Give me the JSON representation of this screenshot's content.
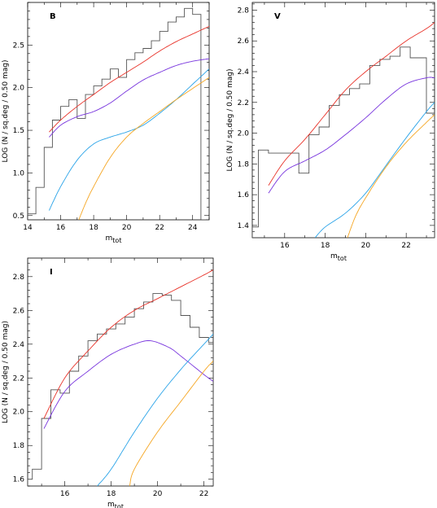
{
  "chart_data": [
    {
      "type": "line",
      "panel_label": "B",
      "xlabel": "m",
      "xlabel_sub": "tot",
      "ylabel": "LOG (N / sq.deg / 0.50 mag)",
      "xlim": [
        14,
        25
      ],
      "ylim": [
        0.45,
        3.0
      ],
      "xticks": [
        14,
        16,
        18,
        20,
        22,
        24
      ],
      "yticks": [
        0.5,
        1.0,
        1.5,
        2.0,
        2.5
      ],
      "ytick_labels": [
        "0.5",
        "1.0",
        "1.5",
        "2.0",
        "2.5"
      ],
      "grid": false,
      "series": [
        {
          "kind": "histogram",
          "color": "#555555",
          "edges": [
            14.0,
            14.5,
            15.0,
            15.5,
            16.0,
            16.5,
            17.0,
            17.5,
            18.0,
            18.5,
            19.0,
            19.5,
            20.0,
            20.5,
            21.0,
            21.5,
            22.0,
            22.5,
            23.0,
            23.5,
            24.0,
            24.5,
            24.8
          ],
          "values": [
            0.52,
            0.83,
            1.3,
            1.62,
            1.78,
            1.86,
            1.64,
            1.92,
            2.02,
            2.1,
            2.22,
            2.12,
            2.33,
            2.41,
            2.46,
            2.55,
            2.66,
            2.77,
            2.83,
            2.93,
            2.86,
            0.45
          ]
        },
        {
          "color": "#e8332a",
          "x": [
            15.3,
            16,
            17,
            18,
            19,
            20,
            21,
            22,
            23,
            24,
            25
          ],
          "y": [
            1.48,
            1.62,
            1.78,
            1.92,
            2.06,
            2.18,
            2.3,
            2.43,
            2.54,
            2.63,
            2.72
          ]
        },
        {
          "color": "#7733dd",
          "x": [
            15.3,
            16,
            17,
            18,
            19,
            20,
            21,
            22,
            23,
            24,
            25
          ],
          "y": [
            1.42,
            1.56,
            1.66,
            1.72,
            1.82,
            1.96,
            2.09,
            2.18,
            2.26,
            2.31,
            2.34
          ]
        },
        {
          "color": "#29a3e8",
          "x": [
            15.3,
            16,
            17,
            18,
            19,
            20,
            21,
            22,
            23,
            24,
            25
          ],
          "y": [
            0.56,
            0.84,
            1.15,
            1.34,
            1.42,
            1.48,
            1.56,
            1.7,
            1.86,
            2.04,
            2.22
          ]
        },
        {
          "color": "#f5a623",
          "x": [
            17.1,
            17.5,
            18,
            19,
            20,
            21,
            22,
            23,
            24,
            25
          ],
          "y": [
            0.45,
            0.64,
            0.84,
            1.18,
            1.42,
            1.58,
            1.72,
            1.86,
            1.99,
            2.12
          ]
        }
      ]
    },
    {
      "type": "line",
      "panel_label": "V",
      "xlabel": "m",
      "xlabel_sub": "tot",
      "ylabel": "LOG (N / sq.deg / 0.50 mag)",
      "xlim": [
        14.4,
        23.4
      ],
      "ylim": [
        1.32,
        2.85
      ],
      "xticks": [
        16,
        18,
        20,
        22
      ],
      "yticks": [
        1.4,
        1.6,
        1.8,
        2.0,
        2.2,
        2.4,
        2.6,
        2.8
      ],
      "ytick_labels": [
        "1.4",
        "1.6",
        "1.8",
        "2.0",
        "2.2",
        "2.4",
        "2.6",
        "2.8"
      ],
      "grid": false,
      "series": [
        {
          "kind": "histogram",
          "color": "#555555",
          "edges": [
            14.4,
            14.7,
            15.2,
            15.7,
            16.2,
            16.7,
            17.2,
            17.7,
            18.2,
            18.7,
            19.2,
            19.7,
            20.2,
            20.7,
            21.2,
            21.7,
            22.2,
            22.7,
            23.0,
            23.4
          ],
          "values": [
            1.39,
            1.89,
            1.87,
            1.87,
            1.87,
            1.74,
            1.99,
            2.04,
            2.18,
            2.25,
            2.29,
            2.32,
            2.44,
            2.48,
            2.5,
            2.56,
            2.49,
            2.49,
            2.13
          ]
        },
        {
          "color": "#e8332a",
          "x": [
            15.2,
            16,
            17,
            18,
            19,
            20,
            21,
            22,
            23,
            23.4
          ],
          "y": [
            1.66,
            1.82,
            1.96,
            2.12,
            2.28,
            2.4,
            2.5,
            2.6,
            2.68,
            2.72
          ]
        },
        {
          "color": "#7733dd",
          "x": [
            15.2,
            16,
            17,
            18,
            19,
            20,
            21,
            22,
            23,
            23.4
          ],
          "y": [
            1.61,
            1.75,
            1.82,
            1.89,
            1.99,
            2.1,
            2.22,
            2.32,
            2.36,
            2.36
          ]
        },
        {
          "color": "#29a3e8",
          "x": [
            17.5,
            18,
            19,
            20,
            21,
            22,
            23,
            23.4
          ],
          "y": [
            1.32,
            1.39,
            1.48,
            1.61,
            1.79,
            1.97,
            2.14,
            2.2
          ]
        },
        {
          "color": "#f5a623",
          "x": [
            19.1,
            19.5,
            20,
            21,
            22,
            23,
            23.4
          ],
          "y": [
            1.32,
            1.46,
            1.58,
            1.78,
            1.94,
            2.07,
            2.12
          ]
        }
      ]
    },
    {
      "type": "line",
      "panel_label": "I",
      "xlabel": "m",
      "xlabel_sub": "tot",
      "ylabel": "LOG (N / sq.deg / 0.50 mag)",
      "xlim": [
        14.4,
        22.4
      ],
      "ylim": [
        1.56,
        2.91
      ],
      "xticks": [
        16,
        18,
        20,
        22
      ],
      "yticks": [
        1.6,
        1.8,
        2.0,
        2.2,
        2.4,
        2.6,
        2.8
      ],
      "ytick_labels": [
        "1.6",
        "1.8",
        "2.0",
        "2.2",
        "2.4",
        "2.6",
        "2.8"
      ],
      "grid": false,
      "series": [
        {
          "kind": "histogram",
          "color": "#555555",
          "edges": [
            14.4,
            14.6,
            15.0,
            15.4,
            15.8,
            16.2,
            16.6,
            17.0,
            17.4,
            17.8,
            18.2,
            18.6,
            19.0,
            19.4,
            19.8,
            20.2,
            20.6,
            21.0,
            21.4,
            21.8,
            22.2,
            22.4
          ],
          "values": [
            1.6,
            1.66,
            1.96,
            2.13,
            2.11,
            2.24,
            2.33,
            2.42,
            2.46,
            2.49,
            2.52,
            2.56,
            2.61,
            2.65,
            2.7,
            2.69,
            2.66,
            2.57,
            2.5,
            2.44,
            2.41
          ]
        },
        {
          "color": "#e8332a",
          "x": [
            15.1,
            16,
            17,
            18,
            19,
            20,
            21,
            22,
            22.4
          ],
          "y": [
            1.96,
            2.2,
            2.36,
            2.5,
            2.6,
            2.67,
            2.74,
            2.81,
            2.84
          ]
        },
        {
          "color": "#7733dd",
          "x": [
            15.1,
            16,
            17,
            18,
            19,
            19.7,
            20.5,
            21,
            22,
            22.4
          ],
          "y": [
            1.9,
            2.12,
            2.24,
            2.34,
            2.4,
            2.42,
            2.38,
            2.33,
            2.22,
            2.18
          ]
        },
        {
          "color": "#29a3e8",
          "x": [
            17.4,
            18,
            19,
            20,
            21,
            22,
            22.4
          ],
          "y": [
            1.56,
            1.66,
            1.88,
            2.08,
            2.25,
            2.4,
            2.46
          ]
        },
        {
          "color": "#f5a623",
          "x": [
            18.8,
            19,
            20,
            21,
            22,
            22.4
          ],
          "y": [
            1.56,
            1.66,
            1.88,
            2.06,
            2.24,
            2.3
          ]
        }
      ]
    }
  ]
}
